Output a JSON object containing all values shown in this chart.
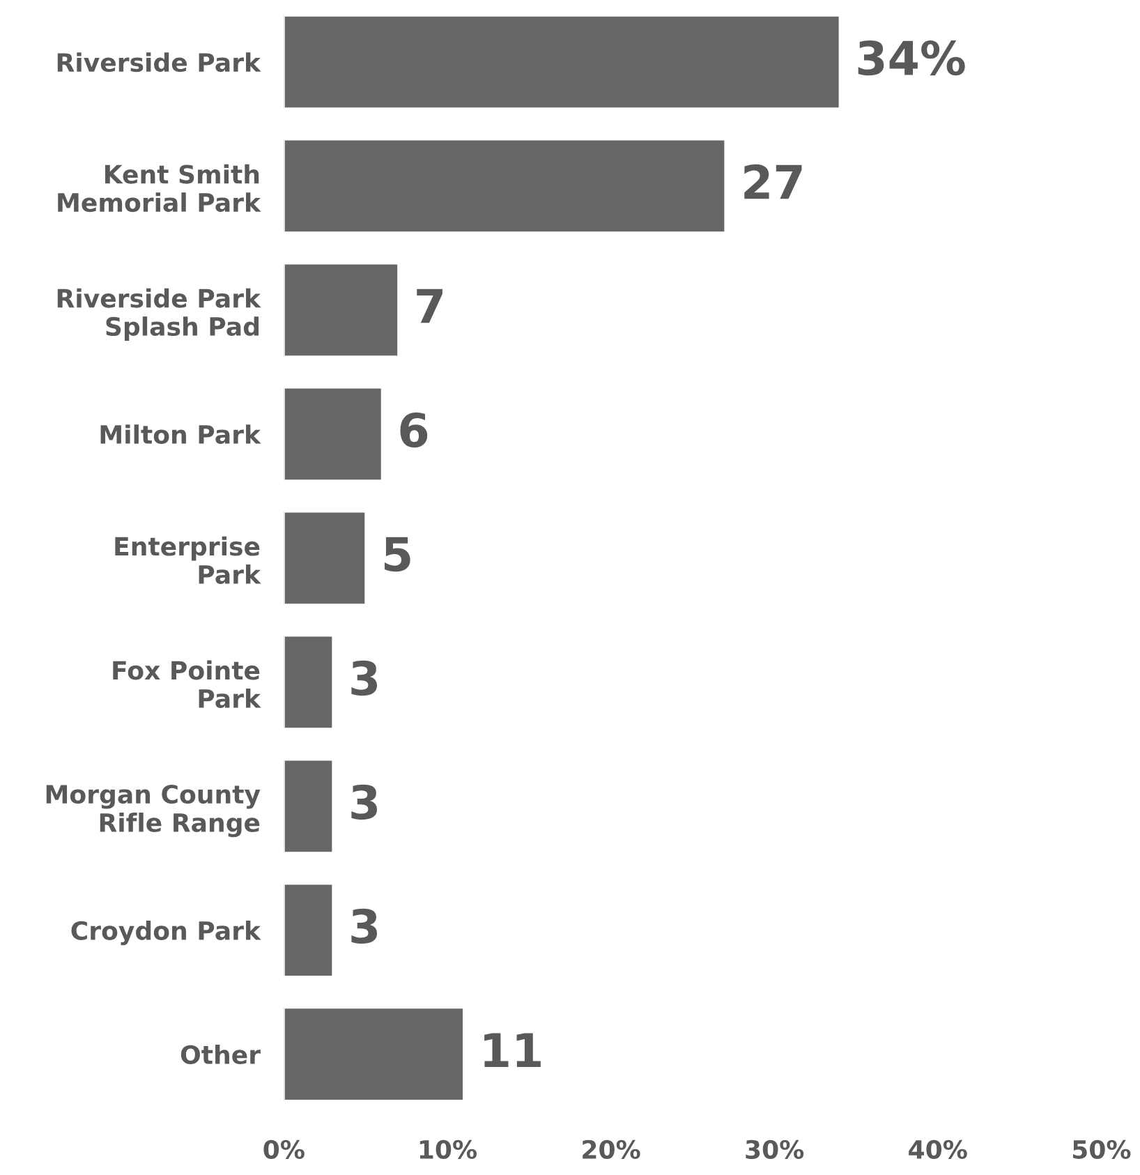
{
  "chart_data": {
    "type": "bar",
    "orientation": "horizontal",
    "categories": [
      "Riverside Park",
      "Kent Smith\nMemorial Park",
      "Riverside Park\nSplash Pad",
      "Milton Park",
      "Enterprise\nPark",
      "Fox Pointe\nPark",
      "Morgan County\nRifle Range",
      "Croydon Park",
      "Other"
    ],
    "values": [
      34,
      27,
      7,
      6,
      5,
      3,
      3,
      3,
      11
    ],
    "value_labels": [
      "34%",
      "27",
      "7",
      "6",
      "5",
      "3",
      "3",
      "3",
      "11"
    ],
    "color": "#666666",
    "xlim": [
      0,
      50
    ],
    "xticks": [
      {
        "value": 0,
        "label": "0%"
      },
      {
        "value": 10,
        "label": "10%"
      },
      {
        "value": 20,
        "label": "20%"
      },
      {
        "value": 30,
        "label": "30%"
      },
      {
        "value": 40,
        "label": "40%"
      },
      {
        "value": 50,
        "label": "50%"
      }
    ],
    "grid": false
  }
}
